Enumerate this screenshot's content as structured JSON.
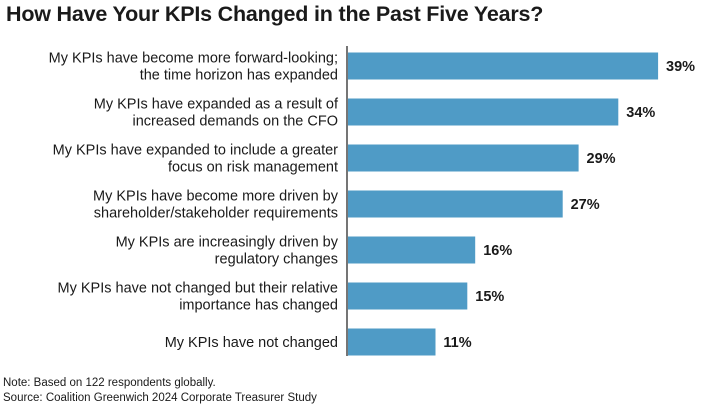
{
  "chart_data": {
    "type": "bar",
    "orientation": "horizontal",
    "title": "How Have Your KPIs Changed in the Past Five Years?",
    "categories": [
      [
        "My KPIs have become more forward-looking;",
        "the time horizon has expanded"
      ],
      [
        "My KPIs have expanded as a result of",
        "increased demands on the CFO"
      ],
      [
        "My KPIs have expanded to include a greater",
        "focus on risk management"
      ],
      [
        "My KPIs have become more driven by",
        "shareholder/stakeholder requirements"
      ],
      [
        "My KPIs are increasingly driven by",
        "regulatory changes"
      ],
      [
        "My KPIs have not changed but their relative",
        "importance has changed"
      ],
      [
        "My KPIs have not changed"
      ]
    ],
    "values": [
      39,
      34,
      29,
      27,
      16,
      15,
      11
    ],
    "value_labels": [
      "39%",
      "34%",
      "29%",
      "27%",
      "16%",
      "15%",
      "11%"
    ],
    "unit": "%",
    "bar_color": "#4f9bc6",
    "axis_line_color": "#1a1a1a",
    "xlim": [
      0,
      39
    ],
    "grid": false,
    "legend": "none"
  },
  "footnotes": {
    "note": "Note: Based on 122 respondents globally.",
    "source": "Source: Coalition Greenwich 2024 Corporate Treasurer Study"
  }
}
